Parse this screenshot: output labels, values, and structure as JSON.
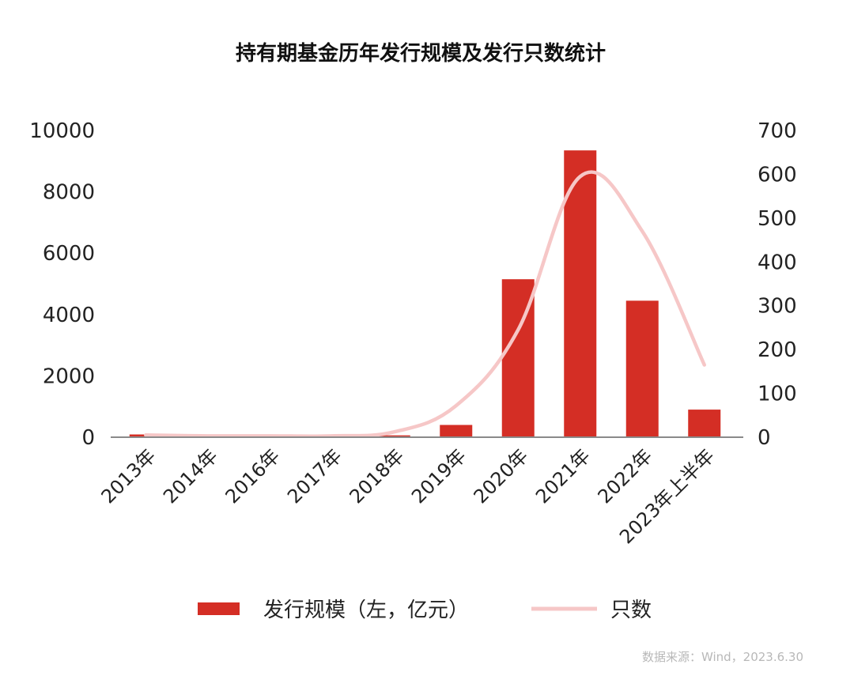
{
  "chart_data": {
    "type": "bar",
    "title": "持有期基金历年发行规模及发行只数统计",
    "categories": [
      "2013年",
      "2014年",
      "2016年",
      "2017年",
      "2018年",
      "2019年",
      "2020年",
      "2021年",
      "2022年",
      "2023年上半年"
    ],
    "series": [
      {
        "name": "发行规模（左，亿元）",
        "type": "bar",
        "axis": "left",
        "color": "#d42e25",
        "values": [
          90,
          15,
          15,
          15,
          60,
          400,
          5150,
          9350,
          4450,
          900
        ]
      },
      {
        "name": "只数",
        "type": "line",
        "axis": "right",
        "color": "#f6c7c7",
        "values": [
          5,
          3,
          3,
          3,
          12,
          72,
          245,
          595,
          470,
          165
        ]
      }
    ],
    "y_left": {
      "range": [
        0,
        10000
      ],
      "ticks": [
        "0",
        "2000",
        "4000",
        "6000",
        "8000",
        "10000"
      ]
    },
    "y_right": {
      "range": [
        0,
        700
      ],
      "ticks": [
        "0",
        "100",
        "200",
        "300",
        "400",
        "500",
        "600",
        "700"
      ]
    },
    "grid": false,
    "legend_position": "bottom"
  },
  "source": "数据来源：Wind，2023.6.30"
}
